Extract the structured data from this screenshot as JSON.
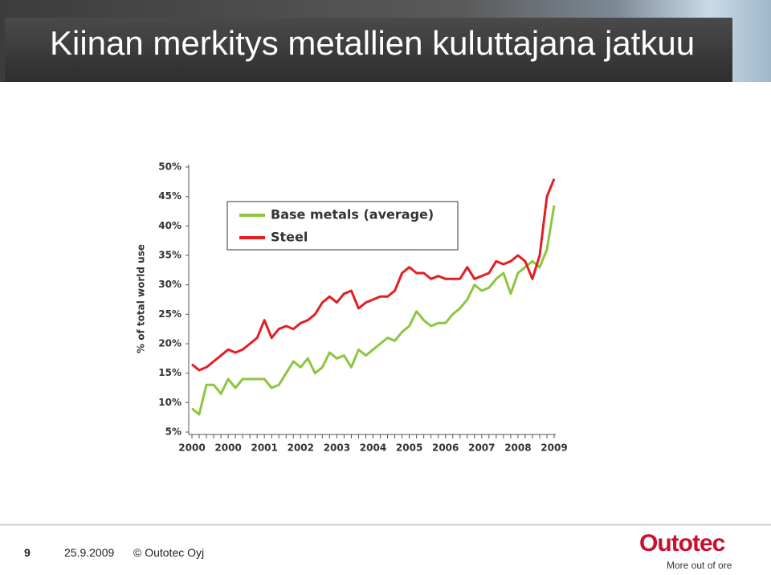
{
  "header": {
    "title": "Kiinan merkitys metallien kuluttajana jatkuu"
  },
  "footer": {
    "page": "9",
    "date": "25.9.2009",
    "copyright": "© Outotec Oyj",
    "logo": "Outotec",
    "slogan": "More out of ore"
  },
  "chart_data": {
    "type": "line",
    "y_label": "% of total world use",
    "categories": [
      "2000",
      null,
      null,
      null,
      null,
      "2000",
      null,
      null,
      null,
      null,
      "2001",
      null,
      null,
      null,
      null,
      "2002",
      null,
      null,
      null,
      null,
      "2003",
      null,
      null,
      null,
      null,
      "2004",
      null,
      null,
      null,
      null,
      "2005",
      null,
      null,
      null,
      null,
      "2006",
      null,
      null,
      null,
      null,
      "2007",
      null,
      null,
      null,
      null,
      "2008",
      null,
      null,
      null,
      null,
      "2009"
    ],
    "ylim": [
      5,
      50
    ],
    "yticks": [
      {
        "value": 5,
        "label": "5%"
      },
      {
        "value": 10,
        "label": "10%"
      },
      {
        "value": 15,
        "label": "15%"
      },
      {
        "value": 20,
        "label": "20%"
      },
      {
        "value": 25,
        "label": "25%"
      },
      {
        "value": 30,
        "label": "30%"
      },
      {
        "value": 35,
        "label": "35%"
      },
      {
        "value": 40,
        "label": "40%"
      },
      {
        "value": 45,
        "label": "45%"
      },
      {
        "value": 50,
        "label": "50%"
      }
    ],
    "grid": false,
    "legend": "upper left",
    "series": [
      {
        "name": "Base metals (average)",
        "color": "#8cc63f",
        "values": [
          9,
          8,
          13,
          13,
          11.5,
          14,
          12.5,
          14,
          14,
          14,
          14,
          12.5,
          13,
          15,
          17,
          16,
          17.5,
          15,
          16,
          18.5,
          17.5,
          18,
          16,
          19,
          18,
          19,
          20,
          21,
          20.5,
          22,
          23,
          25.5,
          24,
          23,
          23.5,
          23.5,
          25,
          26,
          27.5,
          30,
          29,
          29.5,
          31,
          32,
          28.5,
          32,
          33,
          34,
          33,
          36,
          43.5
        ]
      },
      {
        "name": "Steel",
        "color": "#e31e24",
        "values": [
          16.5,
          15.5,
          16,
          17,
          18,
          19,
          18.5,
          19,
          20,
          21,
          24,
          21,
          22.5,
          23,
          22.5,
          23.5,
          24,
          25,
          27,
          28,
          27,
          28.5,
          29,
          26,
          27,
          27.5,
          28,
          28,
          29,
          32,
          33,
          32,
          32,
          31,
          31.5,
          31,
          31,
          31,
          33,
          31,
          31.5,
          32,
          34,
          33.5,
          34,
          35,
          34,
          31,
          35,
          45,
          48
        ]
      }
    ]
  }
}
